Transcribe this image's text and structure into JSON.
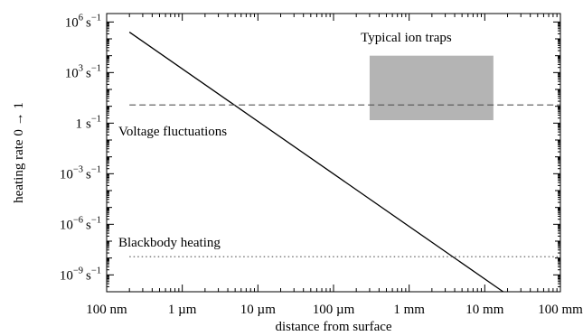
{
  "chart_data": {
    "type": "line",
    "xlabel": "distance from surface",
    "ylabel": "heating rate 0 → 1",
    "x_scale": "log",
    "y_scale": "log",
    "xlim": [
      "100 nm",
      "100 mm"
    ],
    "ylim": [
      "1e-10 s^-1",
      "1e6 s^-1"
    ],
    "x_ticks": [
      {
        "label": "100 nm",
        "value_m": 1e-07
      },
      {
        "label": "1 µm",
        "value_m": 1e-06
      },
      {
        "label": "10 µm",
        "value_m": 1e-05
      },
      {
        "label": "100 µm",
        "value_m": 0.0001
      },
      {
        "label": "1 mm",
        "value_m": 0.001
      },
      {
        "label": "10 mm",
        "value_m": 0.01
      },
      {
        "label": "100 mm",
        "value_m": 0.1
      }
    ],
    "y_ticks": [
      {
        "base": "10",
        "exp": "6",
        "unit": "s",
        "unit_exp": "−1",
        "value": 1000000.0
      },
      {
        "base": "10",
        "exp": "3",
        "unit": "s",
        "unit_exp": "−1",
        "value": 1000.0
      },
      {
        "base": "1",
        "exp": "",
        "unit": "s",
        "unit_exp": "−1",
        "value": 1
      },
      {
        "base": "10",
        "exp": "−3",
        "unit": "s",
        "unit_exp": "−1",
        "value": 0.001
      },
      {
        "base": "10",
        "exp": "−6",
        "unit": "s",
        "unit_exp": "−1",
        "value": 1e-06
      },
      {
        "base": "10",
        "exp": "−9",
        "unit": "s",
        "unit_exp": "−1",
        "value": 1e-09
      }
    ],
    "series": [
      {
        "style": "solid",
        "color": "#000000",
        "points": [
          {
            "x_m": 2e-07,
            "y": 250000.0
          },
          {
            "x_m": 0.0175,
            "y": 1e-10
          }
        ]
      },
      {
        "name": "Voltage fluctuations",
        "style": "dashed",
        "color": "#555555",
        "points": [
          {
            "x_m": 2e-07,
            "y": 12
          },
          {
            "x_m": 0.1,
            "y": 12
          }
        ]
      },
      {
        "name": "Blackbody heating",
        "style": "dotted",
        "color": "#555555",
        "points": [
          {
            "x_m": 2e-07,
            "y": 1.2e-08
          },
          {
            "x_m": 0.1,
            "y": 1.2e-08
          }
        ]
      }
    ],
    "regions": [
      {
        "name": "Typical ion traps",
        "color": "#b4b4b4",
        "x_m": [
          0.0003,
          0.013
        ],
        "y": [
          1.5,
          10000.0
        ]
      }
    ]
  }
}
